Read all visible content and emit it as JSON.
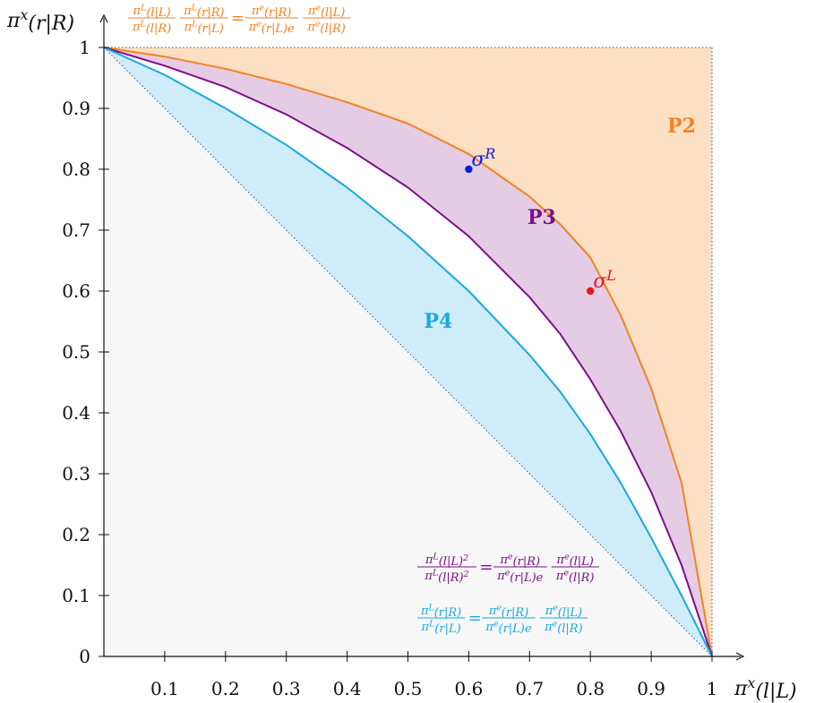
{
  "chart_data": {
    "type": "area",
    "xlabel": "π^x(l|L)",
    "ylabel": "π^x(r|R)",
    "xlim": [
      0,
      1
    ],
    "ylim": [
      0,
      1
    ],
    "x_ticks": [
      "0.1",
      "0.2",
      "0.3",
      "0.4",
      "0.5",
      "0.6",
      "0.7",
      "0.8",
      "0.9",
      "1"
    ],
    "y_ticks": [
      "0",
      "0.1",
      "0.2",
      "0.3",
      "0.4",
      "0.5",
      "0.6",
      "0.7",
      "0.8",
      "0.9",
      "1"
    ],
    "grid": false,
    "series": [
      {
        "color": "#f5821f",
        "x": [
          0,
          0.1,
          0.2,
          0.3,
          0.4,
          0.5,
          0.6,
          0.7,
          0.75,
          0.8,
          0.85,
          0.9,
          0.95,
          1
        ],
        "y": [
          1,
          0.985,
          0.965,
          0.94,
          0.91,
          0.875,
          0.825,
          0.755,
          0.71,
          0.655,
          0.56,
          0.44,
          0.285,
          0
        ]
      },
      {
        "color": "#7b0f8a",
        "x": [
          0,
          0.1,
          0.2,
          0.3,
          0.4,
          0.5,
          0.6,
          0.7,
          0.75,
          0.8,
          0.85,
          0.9,
          0.95,
          1
        ],
        "y": [
          1,
          0.97,
          0.935,
          0.89,
          0.835,
          0.77,
          0.69,
          0.59,
          0.53,
          0.455,
          0.37,
          0.27,
          0.15,
          0
        ]
      },
      {
        "color": "#19a9e0",
        "x": [
          0,
          0.1,
          0.2,
          0.3,
          0.4,
          0.5,
          0.6,
          0.7,
          0.75,
          0.8,
          0.85,
          0.9,
          0.95,
          1
        ],
        "y": [
          1,
          0.955,
          0.9,
          0.84,
          0.77,
          0.69,
          0.6,
          0.495,
          0.435,
          0.365,
          0.285,
          0.195,
          0.1,
          0
        ]
      }
    ],
    "points": [
      {
        "label": "σ^R",
        "x": 0.6,
        "y": 0.8,
        "color": "#0a1fe0"
      },
      {
        "label": "σ^L",
        "x": 0.8,
        "y": 0.6,
        "color": "#e51b1b"
      }
    ],
    "regions": [
      {
        "label": "P2",
        "x": 0.95,
        "y": 0.86,
        "color": "#f5821f"
      },
      {
        "label": "P3",
        "x": 0.72,
        "y": 0.71,
        "color": "#7b0f8a"
      },
      {
        "label": "P4",
        "x": 0.55,
        "y": 0.54,
        "color": "#19a9e0"
      }
    ],
    "equations": [
      {
        "color": "#f5821f",
        "lhs": [
          {
            "num": "π^L(l|L)",
            "den": "π^L(l|R)"
          },
          {
            "num": "π^L(r|R)",
            "den": "π^L(r|L)"
          }
        ],
        "op": "=",
        "rhs": [
          {
            "num": "π^e(r|R)",
            "den": "π^e(r|L)e"
          },
          {
            "num": "π^e(l|L)",
            "den": "π^e(l|R)"
          }
        ]
      },
      {
        "color": "#7b0f8a",
        "lhs": [
          {
            "num": "π^L(l|L)^2",
            "den": "π^L(l|R)^2"
          }
        ],
        "op": "=",
        "rhs": [
          {
            "num": "π^e(r|R)",
            "den": "π^e(r|L)e"
          },
          {
            "num": "π^e(l|L)",
            "den": "π^e(l|R)"
          }
        ]
      },
      {
        "color": "#19a9e0",
        "lhs": [
          {
            "num": "π^L(r|R)",
            "den": "π^L(r|L)"
          }
        ],
        "op": "=",
        "rhs": [
          {
            "num": "π^e(r|R)",
            "den": "π^e(r|L)e"
          },
          {
            "num": "π^e(l|L)",
            "den": "π^e(l|R)"
          }
        ]
      }
    ],
    "fills": {
      "background": "#f7f7f7",
      "P2": "#fde0c4",
      "P3": "#e5cce5",
      "P4": "#cfecf9"
    }
  }
}
